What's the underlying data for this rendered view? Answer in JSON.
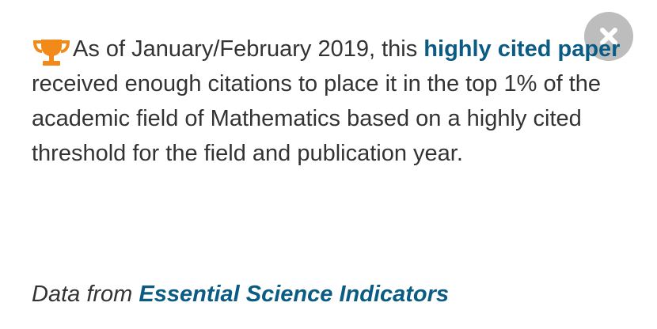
{
  "popup": {
    "message": {
      "prefix": "As of January/February 2019, this ",
      "link_label": "highly cited paper",
      "suffix": " received enough citations to place it in the top 1% of the academic field of Mathematics based on a highly cited threshold for the field and publication year."
    },
    "source": {
      "prefix": "Data from ",
      "link_label": "Essential Science Indicators"
    },
    "icons": {
      "trophy": "trophy-icon",
      "close": "close-icon"
    },
    "colors": {
      "link": "#0a5c84",
      "trophy": "#f28a1a",
      "close_bg": "#bdbdbd",
      "text": "#333333"
    }
  }
}
